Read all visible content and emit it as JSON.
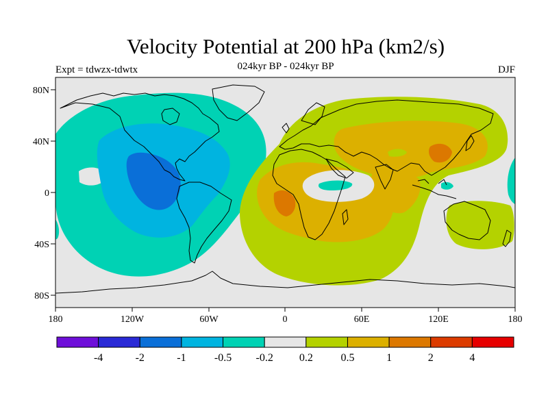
{
  "title": "Velocity Potential at 200 hPa (km2/s)",
  "subtitle": "024kyr BP - 024kyr BP",
  "left_string": "Expt = tdwzx-tdwtx",
  "right_string": "DJF",
  "y_ticks": [
    "80N",
    "40N",
    "0",
    "40S",
    "80S"
  ],
  "x_ticks": [
    "180",
    "120W",
    "60W",
    "0",
    "60E",
    "120E",
    "180"
  ],
  "colorbar": {
    "colors": [
      "#6e0fd9",
      "#2a2ad6",
      "#0a6fd8",
      "#00b4e0",
      "#00d2b4",
      "#e6e6e6",
      "#b4d200",
      "#dcb000",
      "#dc7800",
      "#dc3c00",
      "#e60000"
    ],
    "labels": [
      "-4",
      "-2",
      "-1",
      "-0.5",
      "-0.2",
      "0.2",
      "0.5",
      "1",
      "2",
      "4"
    ]
  },
  "chart_data": {
    "type": "heatmap",
    "title": "Velocity Potential at 200 hPa (km2/s)",
    "subtitle": "024kyr BP - 024kyr BP",
    "left_string": "Expt = tdwzx-tdwtx",
    "right_string": "DJF",
    "projection": "cylindrical equidistant",
    "xlim": [
      -180,
      180
    ],
    "ylim": [
      -90,
      90
    ],
    "contour_levels": [
      -4,
      -2,
      -1,
      -0.5,
      -0.2,
      0.2,
      0.5,
      1,
      2,
      4
    ],
    "features": [
      {
        "region": "eastern Pacific / Americas",
        "sign": "negative",
        "min_bin": "-2 to -1",
        "center": "~95W, 10N"
      },
      {
        "region": "Africa / Indian Ocean / Asia",
        "sign": "positive",
        "max_bin": "1 to 2",
        "centers": [
          "~15E, 0",
          "~120E, 30N"
        ]
      },
      {
        "region": "Australia / SW Pacific",
        "sign": "positive",
        "bin": "0.2 to 0.5"
      }
    ]
  }
}
